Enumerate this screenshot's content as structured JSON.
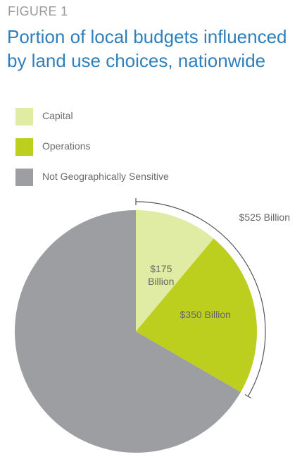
{
  "figure_label": "FIGURE 1",
  "title": "Portion of local budgets influenced by land use choices, nationwide",
  "legend": [
    {
      "label": "Capital",
      "color": "#e0eba3"
    },
    {
      "label": "Operations",
      "color": "#bccf1f"
    },
    {
      "label": "Not Geographically Sensitive",
      "color": "#9d9ea1"
    }
  ],
  "chart_data": {
    "type": "pie",
    "title": "Portion of local budgets influenced by land use choices, nationwide",
    "slices": [
      {
        "name": "Capital",
        "value": 175,
        "label": "$175 Billion",
        "color": "#e0eba3"
      },
      {
        "name": "Operations",
        "value": 350,
        "label": "$350 Billion",
        "color": "#bccf1f"
      },
      {
        "name": "Not Geographically Sensitive",
        "value": 1050,
        "color": "#9d9ea1"
      }
    ],
    "bracket_label": "$525 Billion",
    "bracket_value": 525
  }
}
